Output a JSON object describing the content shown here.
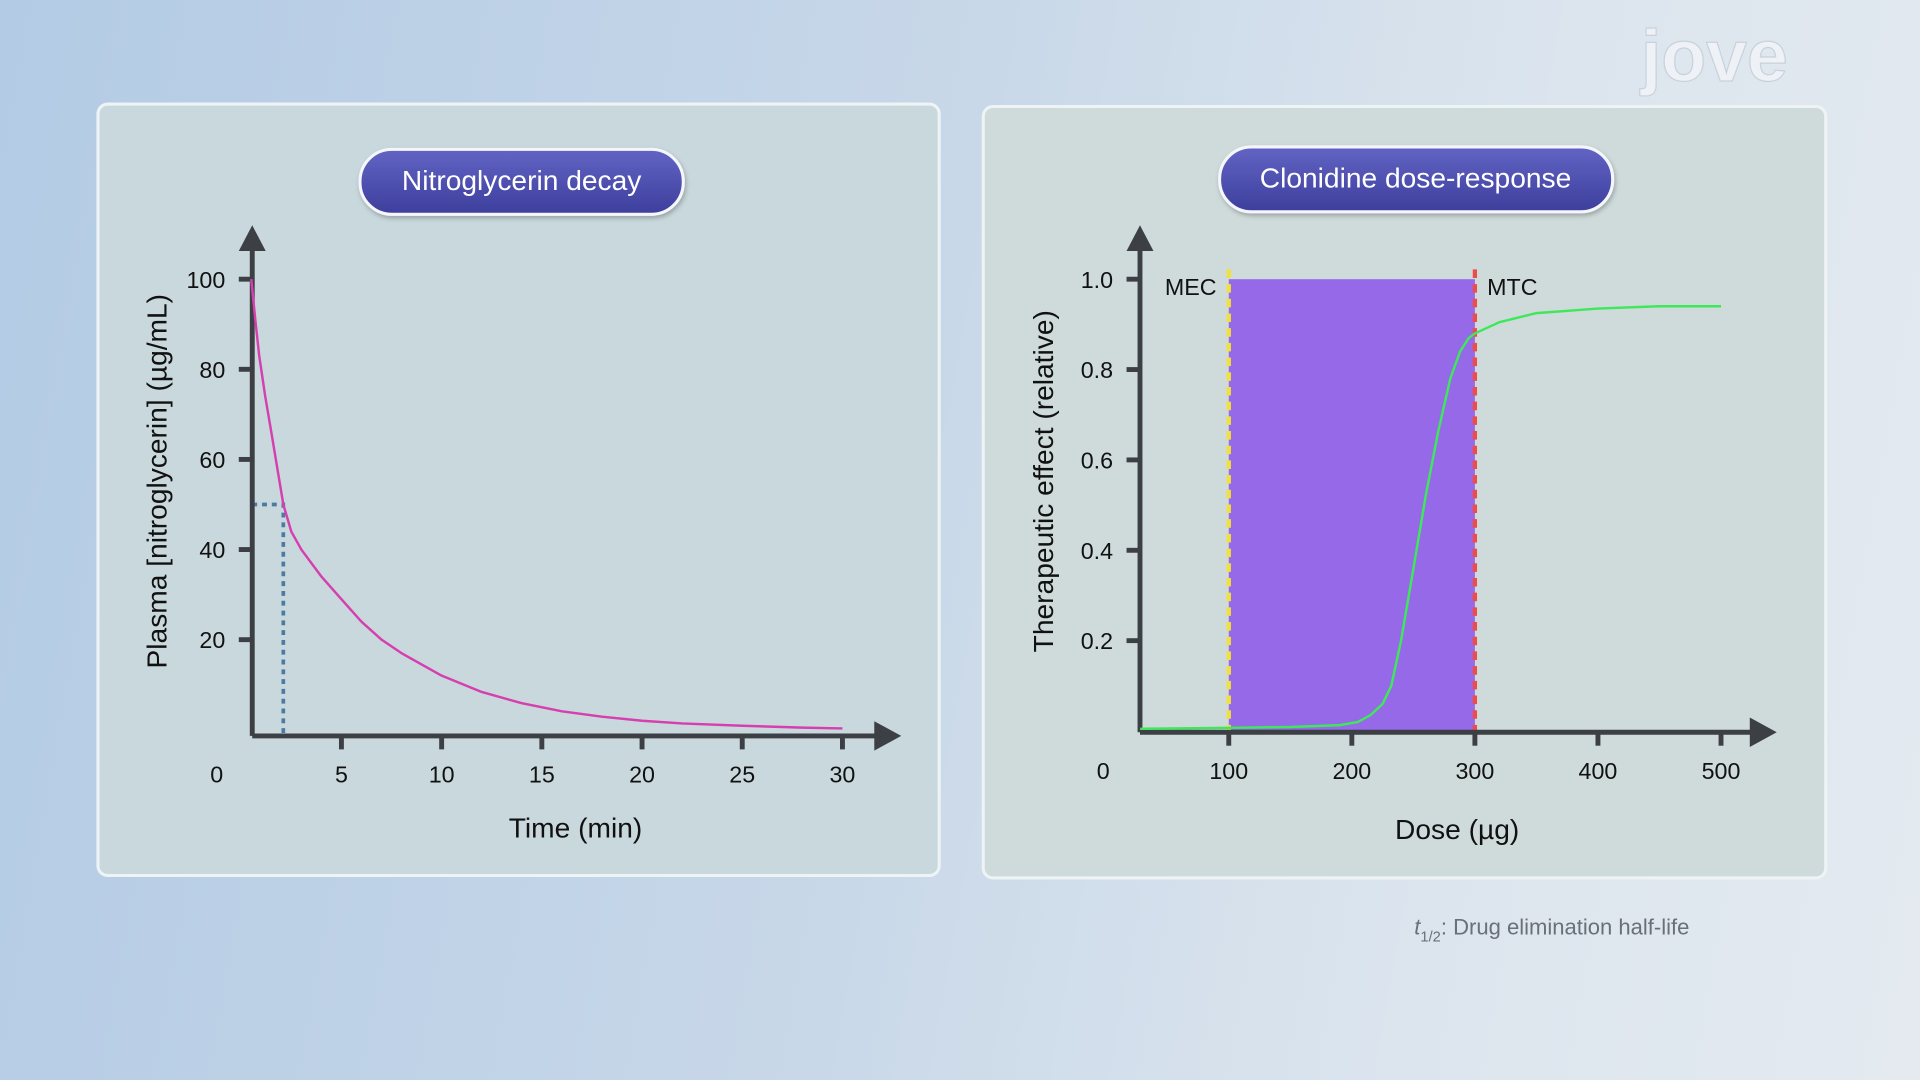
{
  "logo": "jove",
  "footnote": {
    "symbol": "t",
    "subscript": "1/2",
    "text": ": Drug elimination half-life"
  },
  "colors": {
    "pill": "#4a4bab",
    "decay_curve": "#d63fb0",
    "half_life_guide": "#4b7ba3",
    "response_curve": "#3ee85a",
    "therapeutic_window": "#9569e8",
    "mec_line": "#f2e13a",
    "mtc_line": "#ee4b4b",
    "axis": "#3c3f44"
  },
  "chart_data": [
    {
      "type": "line",
      "title": "Nitroglycerin decay",
      "xlabel": "Time (min)",
      "ylabel": "Plasma [nitroglycerin] (µg/mL)",
      "xlim": [
        0,
        30
      ],
      "ylim": [
        0,
        100
      ],
      "x_ticks": [
        "0",
        "5",
        "10",
        "15",
        "20",
        "25",
        "30"
      ],
      "y_ticks": [
        "20",
        "40",
        "60",
        "80",
        "100"
      ],
      "grid": false,
      "half_life_marker": {
        "x": 2.1,
        "y": 50
      },
      "series": [
        {
          "x": [
            0.5,
            0.7,
            0.9,
            1.2,
            1.5,
            1.8,
            2.1,
            2.5,
            3,
            4,
            5,
            6,
            7,
            8,
            10,
            12,
            14,
            16,
            18,
            20,
            22,
            25,
            28,
            30
          ],
          "y": [
            100,
            91,
            83,
            74,
            66,
            58,
            50,
            44,
            40,
            34,
            29,
            24,
            20,
            17,
            12,
            8.4,
            5.9,
            4.1,
            2.9,
            2.0,
            1.4,
            0.9,
            0.5,
            0.3
          ]
        }
      ]
    },
    {
      "type": "line",
      "title": "Clonidine dose-response",
      "xlabel": "Dose (µg)",
      "ylabel": "Therapeutic effect (relative)",
      "xlim": [
        0,
        500
      ],
      "ylim": [
        0,
        1.0
      ],
      "x_ticks": [
        "0",
        "100",
        "200",
        "300",
        "400",
        "500"
      ],
      "y_ticks": [
        "0.2",
        "0.4",
        "0.6",
        "0.8",
        "1.0"
      ],
      "grid": false,
      "therapeutic_window": {
        "from": 100,
        "to": 300,
        "top": 1.0
      },
      "markers": [
        {
          "label": "MEC",
          "x": 100
        },
        {
          "label": "MTC",
          "x": 300
        }
      ],
      "series": [
        {
          "x": [
            28,
            100,
            150,
            190,
            205,
            215,
            225,
            232,
            240,
            250,
            260,
            270,
            280,
            288,
            295,
            300,
            320,
            350,
            400,
            450,
            500
          ],
          "y": [
            0.005,
            0.007,
            0.009,
            0.013,
            0.02,
            0.035,
            0.06,
            0.1,
            0.2,
            0.36,
            0.52,
            0.66,
            0.78,
            0.84,
            0.87,
            0.88,
            0.905,
            0.925,
            0.935,
            0.94,
            0.94
          ]
        }
      ]
    }
  ]
}
